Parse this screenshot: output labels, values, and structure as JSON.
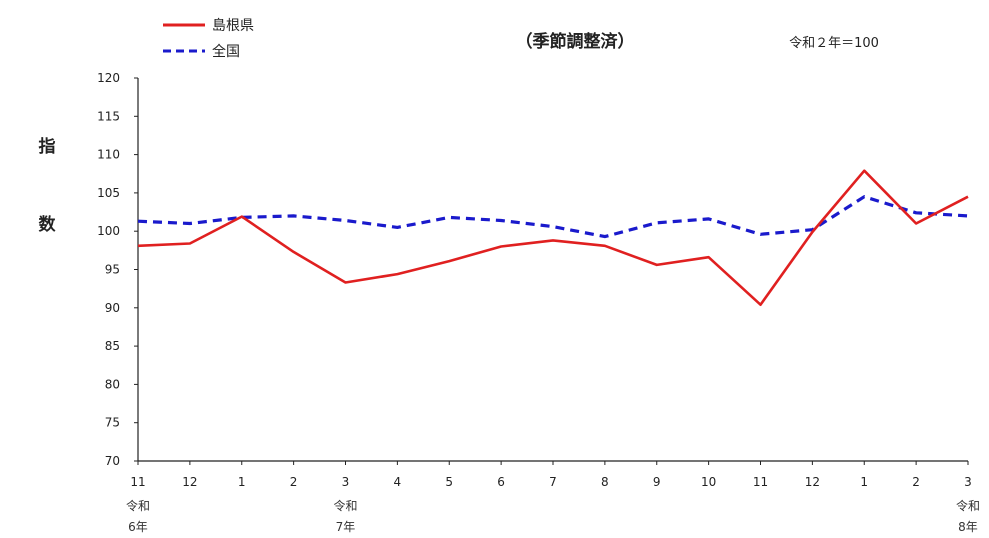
{
  "chart_data": {
    "type": "line",
    "title": "（季節調整済）",
    "note": "令和２年＝100",
    "ylabel": "指数",
    "ylim": [
      70,
      120
    ],
    "yticks": [
      70,
      75,
      80,
      85,
      90,
      95,
      100,
      105,
      110,
      115,
      120
    ],
    "grid": false,
    "legend_position": "top-left",
    "categories": [
      "11",
      "12",
      "1",
      "2",
      "3",
      "4",
      "5",
      "6",
      "7",
      "8",
      "9",
      "10",
      "11",
      "12",
      "1",
      "2",
      "3"
    ],
    "era_labels": [
      {
        "index": 0,
        "line1": "令和",
        "line2": "6年"
      },
      {
        "index": 4,
        "line1": "令和",
        "line2": "7年"
      },
      {
        "index": 16,
        "line1": "令和",
        "line2": "8年"
      }
    ],
    "series": [
      {
        "name": "島根県",
        "style": "solid",
        "color": "#e02020",
        "values": [
          98.1,
          98.4,
          101.9,
          97.3,
          93.3,
          94.4,
          96.1,
          98.0,
          98.8,
          98.1,
          95.6,
          96.6,
          90.4,
          99.9,
          107.9,
          101.0,
          104.5
        ]
      },
      {
        "name": "全国",
        "style": "dashed",
        "color": "#1a1acc",
        "values": [
          101.3,
          101.0,
          101.8,
          102.0,
          101.4,
          100.5,
          101.8,
          101.4,
          100.6,
          99.3,
          101.1,
          101.6,
          99.6,
          100.2,
          104.5,
          102.4,
          102.0
        ]
      }
    ]
  }
}
